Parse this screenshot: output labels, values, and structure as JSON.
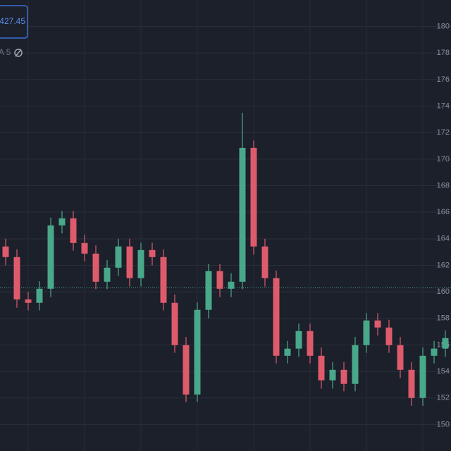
{
  "chart_data": {
    "type": "candlestick",
    "price_label": "427.45",
    "indicator_label": "A 5",
    "open": [
      163.42,
      162.62,
      159.43,
      159.17,
      160.23,
      165.01,
      165.54,
      163.68,
      162.88,
      160.76,
      161.82,
      163.42,
      161.03,
      163.15,
      162.62,
      159.17,
      155.98,
      152.26,
      158.64,
      161.56,
      160.23,
      160.76,
      170.85,
      163.42,
      161.03,
      155.18,
      155.72,
      157.04,
      155.18,
      153.33,
      154.12,
      153.06,
      155.98,
      157.84,
      157.31,
      155.98,
      154.12,
      152.0,
      155.18,
      155.72
    ],
    "close": [
      162.62,
      159.43,
      159.17,
      160.23,
      165.01,
      165.54,
      163.68,
      162.88,
      160.76,
      161.82,
      163.42,
      161.03,
      163.15,
      162.62,
      159.17,
      155.98,
      152.26,
      158.64,
      161.56,
      160.23,
      160.76,
      170.85,
      163.42,
      161.03,
      155.18,
      155.72,
      157.04,
      155.18,
      153.33,
      154.12,
      153.06,
      155.98,
      157.84,
      157.31,
      155.98,
      154.12,
      152.0,
      155.18,
      155.72,
      156.51
    ],
    "high": [
      164.0,
      163.2,
      160.0,
      160.8,
      165.6,
      166.1,
      166.1,
      164.3,
      163.5,
      162.4,
      164.0,
      164.0,
      163.7,
      163.7,
      163.2,
      159.8,
      156.6,
      159.2,
      162.1,
      162.1,
      161.4,
      173.5,
      171.4,
      164.0,
      161.6,
      156.3,
      157.6,
      157.6,
      155.8,
      154.7,
      154.7,
      156.6,
      158.4,
      158.4,
      157.9,
      156.6,
      154.7,
      155.8,
      156.3,
      157.1
    ],
    "low": [
      162.0,
      158.8,
      158.6,
      158.6,
      159.6,
      164.4,
      163.1,
      162.3,
      160.2,
      160.2,
      161.2,
      160.4,
      160.4,
      162.0,
      158.6,
      155.4,
      151.7,
      151.7,
      158.0,
      159.6,
      159.6,
      160.2,
      162.8,
      160.4,
      154.6,
      154.6,
      155.1,
      154.6,
      152.7,
      152.7,
      152.5,
      152.5,
      155.4,
      156.7,
      155.4,
      153.5,
      151.4,
      151.4,
      154.6,
      155.1
    ],
    "price_line": 160.3,
    "up_color": "#4aa88a",
    "down_color": "#de5b6c",
    "ylim": [
      148,
      182
    ],
    "yticks": [
      180,
      178,
      176,
      174,
      172,
      170,
      168,
      166,
      164,
      162,
      160,
      158,
      156,
      154,
      152,
      150
    ],
    "grid": true
  }
}
